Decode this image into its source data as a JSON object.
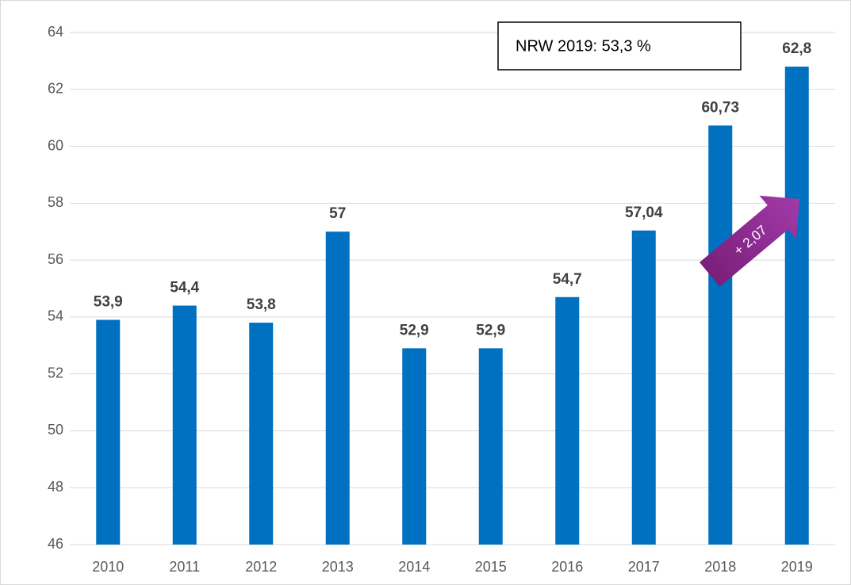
{
  "chart_data": {
    "type": "bar",
    "categories": [
      "2010",
      "2011",
      "2012",
      "2013",
      "2014",
      "2015",
      "2016",
      "2017",
      "2018",
      "2019"
    ],
    "values": [
      53.9,
      54.4,
      53.8,
      57,
      52.9,
      52.9,
      54.7,
      57.04,
      60.73,
      62.8
    ],
    "value_labels": [
      "53,9",
      "54,4",
      "53,8",
      "57",
      "52,9",
      "52,9",
      "54,7",
      "57,04",
      "60,73",
      "62,8"
    ],
    "color": "#0070c0",
    "ylim": [
      46,
      64
    ],
    "yticks": [
      46,
      48,
      50,
      52,
      54,
      56,
      58,
      60,
      62,
      64
    ],
    "grid": true,
    "annotations": [
      "NRW 2019: 53,3 %",
      "+ 2,07"
    ]
  }
}
